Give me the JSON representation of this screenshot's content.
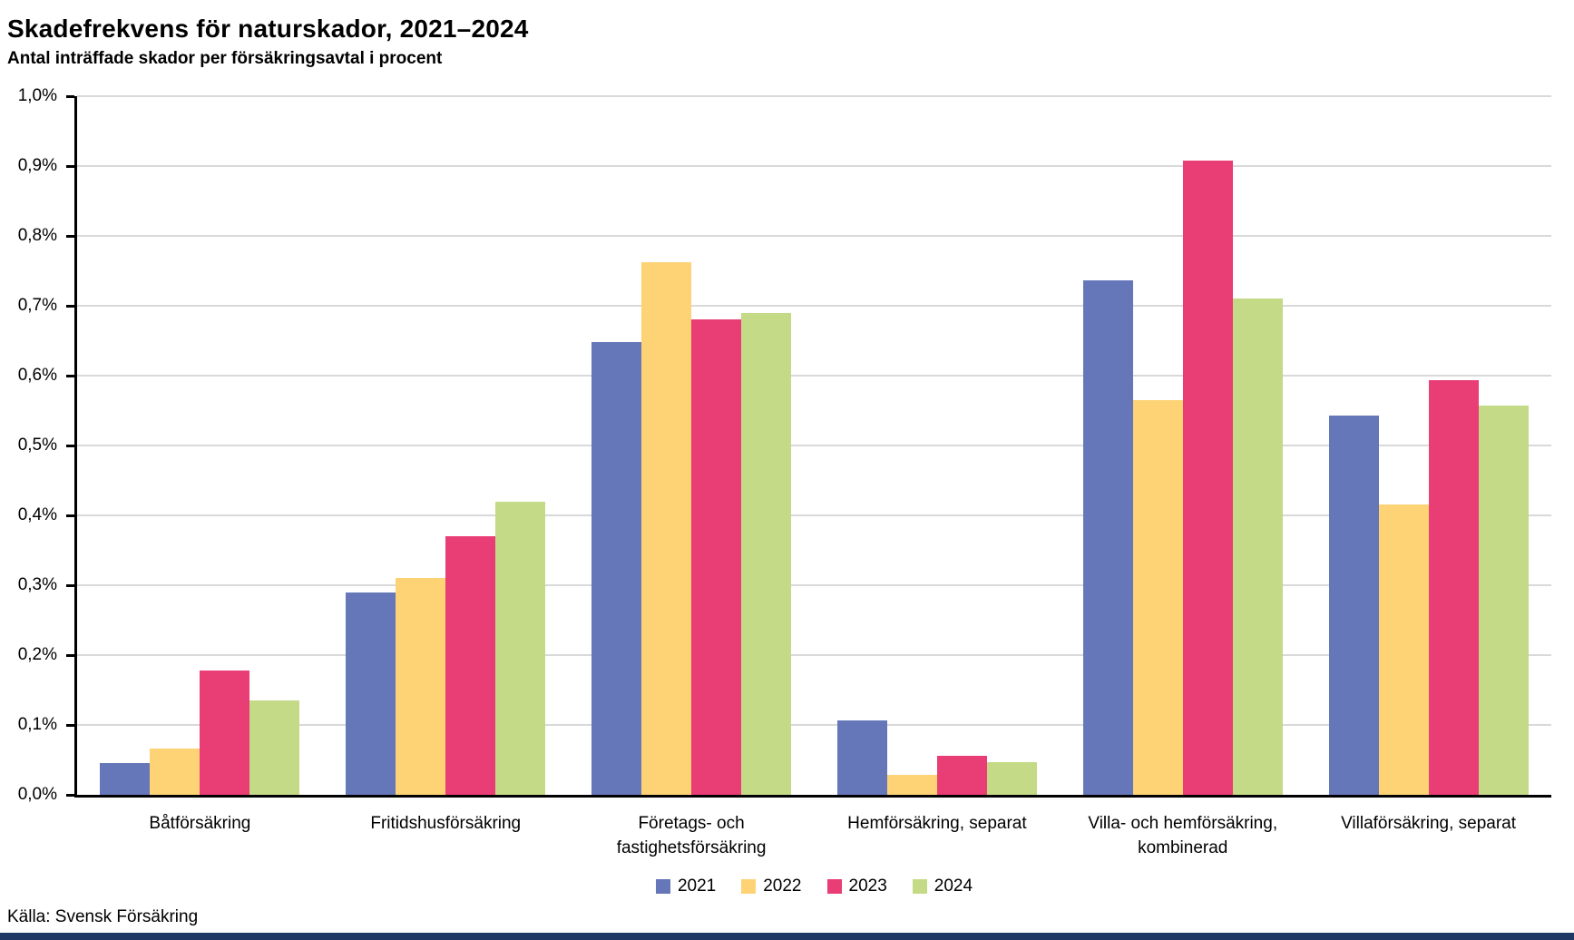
{
  "header": {
    "title": "Skadefrekvens för naturskador, 2021–2024",
    "subtitle": "Antal inträffade skador per försäkringsavtal i procent"
  },
  "source": "Källa: Svensk Försäkring",
  "colors": {
    "series": [
      "#6577b9",
      "#fdd376",
      "#e93d76",
      "#c4da87"
    ],
    "gridline": "#d9d9d9",
    "axis": "#000000",
    "footer_bar": "#203864",
    "text": "#000000"
  },
  "chart_data": {
    "type": "bar",
    "title": "Skadefrekvens för naturskador, 2021–2024",
    "subtitle": "Antal inträffade skador per försäkringsavtal i procent",
    "xlabel": "",
    "ylabel": "",
    "ylim": [
      0,
      1.0
    ],
    "ytick_step": 0.1,
    "ytick_labels": [
      "0,0%",
      "0,1%",
      "0,2%",
      "0,3%",
      "0,4%",
      "0,5%",
      "0,6%",
      "0,7%",
      "0,8%",
      "0,9%",
      "1,0%"
    ],
    "grid": "horizontal",
    "legend_position": "bottom",
    "unit": "percent",
    "categories": [
      "Båtförsäkring",
      "Fritidshusförsäkring",
      "Företags- och fastighetsförsäkring",
      "Hemförsäkring, separat",
      "Villa- och hemförsäkring, kombinerad",
      "Villaförsäkring, separat"
    ],
    "series": [
      {
        "name": "2021",
        "color": "#6577b9",
        "values": [
          0.045,
          0.29,
          0.648,
          0.107,
          0.736,
          0.543
        ]
      },
      {
        "name": "2022",
        "color": "#fdd376",
        "values": [
          0.066,
          0.31,
          0.762,
          0.029,
          0.565,
          0.415
        ]
      },
      {
        "name": "2023",
        "color": "#e93d76",
        "values": [
          0.178,
          0.37,
          0.68,
          0.056,
          0.908,
          0.593
        ]
      },
      {
        "name": "2024",
        "color": "#c4da87",
        "values": [
          0.135,
          0.42,
          0.69,
          0.047,
          0.711,
          0.557
        ]
      }
    ],
    "source": "Källa: Svensk Försäkring"
  }
}
